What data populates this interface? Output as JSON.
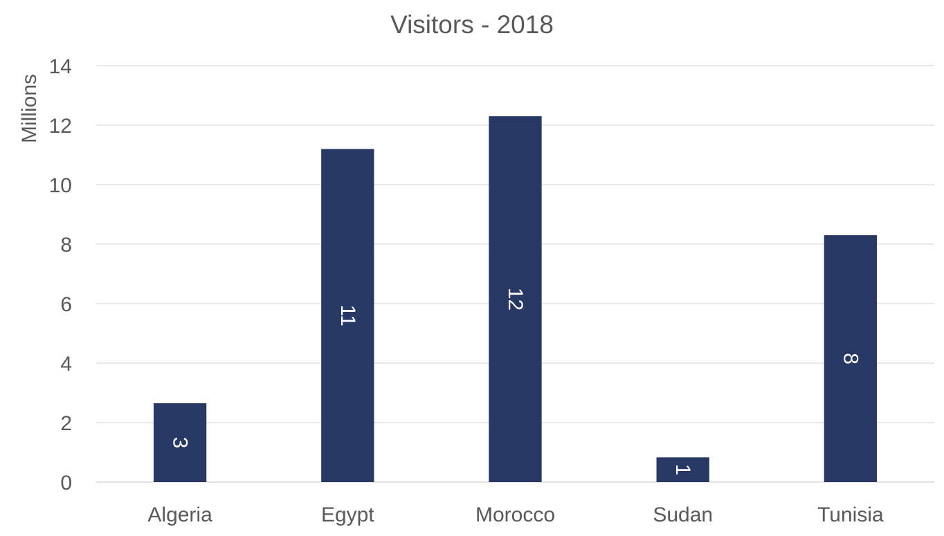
{
  "chart_data": {
    "type": "bar",
    "title": "Visitors - 2018",
    "xlabel": "",
    "ylabel": "Millions",
    "categories": [
      "Algeria",
      "Egypt",
      "Morocco",
      "Sudan",
      "Tunisia"
    ],
    "values": [
      2.65,
      11.2,
      12.3,
      0.83,
      8.3
    ],
    "data_labels": [
      "3",
      "11",
      "12",
      "1",
      "8"
    ],
    "ylim": [
      0,
      14
    ],
    "yticks": [
      "0",
      "2",
      "4",
      "6",
      "8",
      "10",
      "12",
      "14"
    ],
    "grid": true,
    "legend": "none",
    "bar_color": "#283864",
    "grid_color": "#d9d9d9",
    "text_color": "#595959",
    "label_color": "#ffffff"
  }
}
